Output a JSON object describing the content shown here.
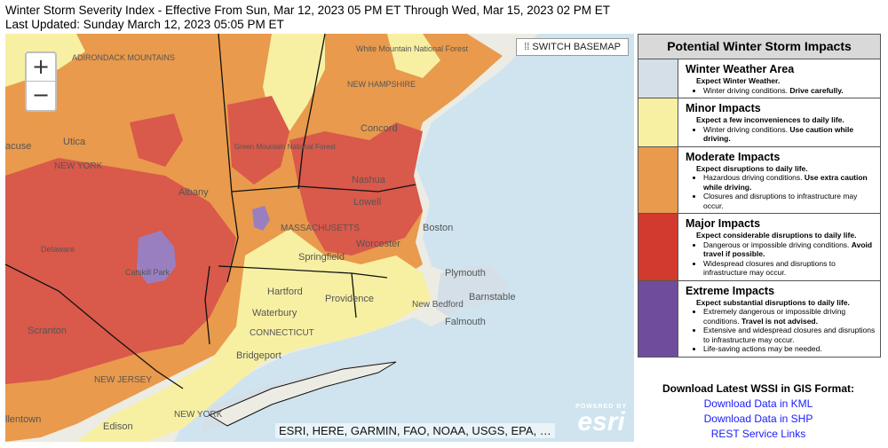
{
  "header": {
    "title": "Winter Storm Severity Index - Effective From Sun, Mar 12, 2023 05 PM ET Through Wed, Mar 15, 2023 02 PM ET",
    "updated": "Last Updated: Sunday March 12, 2023 05:05 PM ET"
  },
  "map": {
    "zoom_in": "+",
    "zoom_out": "−",
    "switch_basemap": "SWITCH BASEMAP",
    "attribution": "ESRI, HERE, GARMIN, FAO, NOAA, USGS, EPA, …",
    "esri_powered": "POWERED BY",
    "esri_name": "esri",
    "labels": {
      "adirondack": "ADIRONDACK MOUNTAINS",
      "white_mtn": "White Mountain National Forest",
      "new_hampshire": "NEW HAMPSHIRE",
      "utica": "Utica",
      "syracuse": "acuse",
      "new_york_state": "NEW YORK",
      "albany": "Albany",
      "green_mtn": "Green Mountain National Forest",
      "concord": "Concord",
      "nashua": "Nashua",
      "lowell": "Lowell",
      "boston": "Boston",
      "massachusetts": "MASSACHUSETTS",
      "worcester": "Worcester",
      "springfield": "Springfield",
      "plymouth": "Plymouth",
      "catskill": "Catskill Park",
      "delaware": "Delaware",
      "hartford": "Hartford",
      "providence": "Providence",
      "barnstable": "Barnstable",
      "new_bedford": "New Bedford",
      "falmouth": "Falmouth",
      "waterbury": "Waterbury",
      "connecticut": "CONNECTICUT",
      "scranton": "Scranton",
      "bridgeport": "Bridgeport",
      "new_jersey": "NEW JERSEY",
      "new_york_city": "NEW YORK",
      "allentown": "llentown",
      "edison": "Edison"
    }
  },
  "legend": {
    "title": "Potential Winter Storm Impacts",
    "items": [
      {
        "name": "Winter Weather Area",
        "color": "#d4dfe7",
        "expect": "Expect Winter Weather.",
        "bullets": [
          "Winter driving conditions. <b>Drive carefully.</b>"
        ]
      },
      {
        "name": "Minor Impacts",
        "color": "#f7f0a3",
        "expect": "Expect a few inconveniences to daily life.",
        "bullets": [
          "Winter driving conditions. <b>Use caution while driving.</b>"
        ]
      },
      {
        "name": "Moderate Impacts",
        "color": "#e99a4c",
        "expect": "Expect disruptions to daily life.",
        "bullets": [
          "Hazardous driving conditions. <b>Use extra caution while driving.</b>",
          "Closures and disruptions to infrastructure may occur."
        ]
      },
      {
        "name": "Major Impacts",
        "color": "#d33a2f",
        "expect": "Expect considerable disruptions to daily life.",
        "bullets": [
          "Dangerous or impossible driving conditions. <b>Avoid travel if possible.</b>",
          "Widespread closures and disruptions to infrastructure may occur."
        ]
      },
      {
        "name": "Extreme Impacts",
        "color": "#6f4d9c",
        "expect": "Expect substantial disruptions to daily life.",
        "bullets": [
          "Extremely dangerous or impossible driving conditions. <b>Travel is not advised.</b>",
          "Extensive and widespread closures and disruptions to infrastructure may occur.",
          "Life-saving actions may be needed."
        ]
      }
    ]
  },
  "downloads": {
    "title": "Download Latest WSSI in GIS Format:",
    "kml": "Download Data in KML",
    "shp": "Download Data in SHP",
    "rest": "REST Service Links"
  }
}
